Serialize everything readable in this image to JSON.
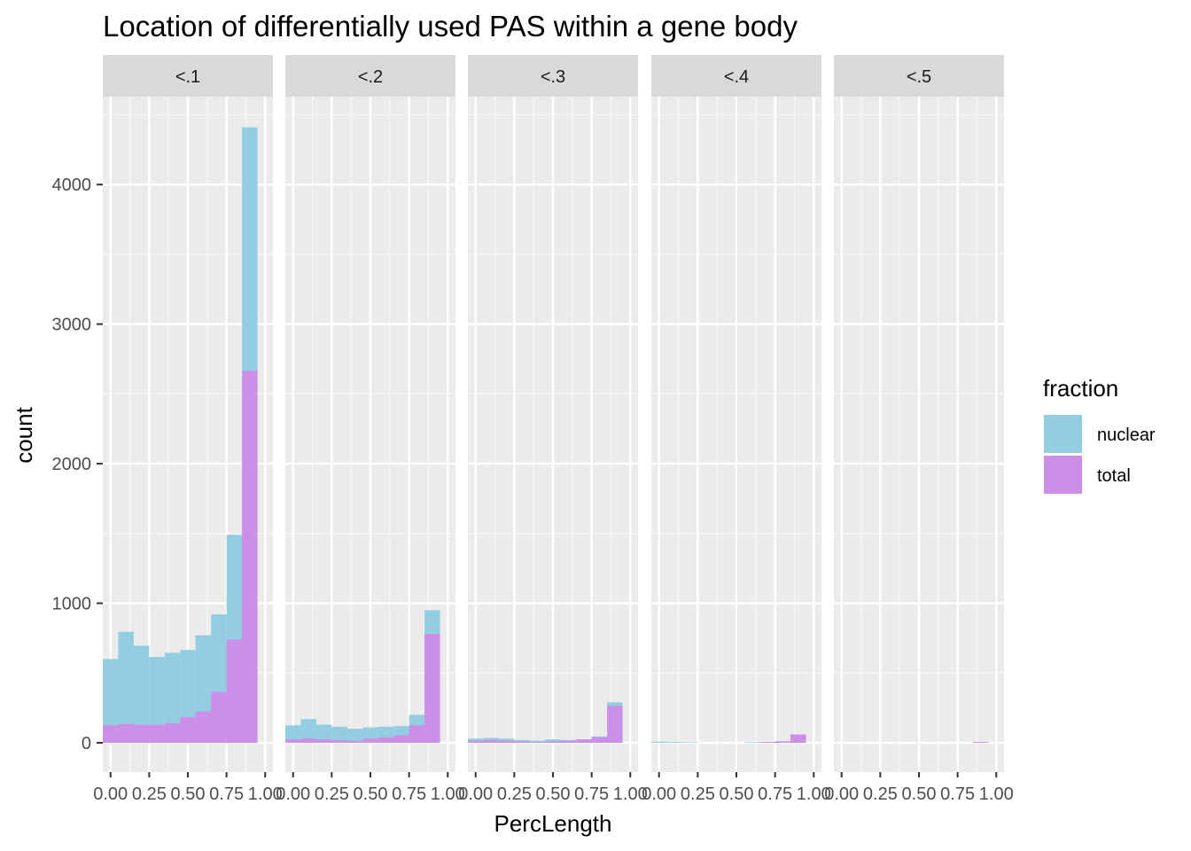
{
  "chart_data": {
    "type": "bar",
    "subtype": "faceted-histogram-overlay",
    "title": "Location of differentially used PAS within a gene body",
    "xlabel": "PercLength",
    "ylabel": "count",
    "ylim": [
      -210,
      4630
    ],
    "xlim": [
      -0.05,
      1.05
    ],
    "y_ticks": [
      0,
      1000,
      2000,
      3000,
      4000
    ],
    "x_ticks": [
      0,
      0.25,
      0.5,
      0.75,
      1.0
    ],
    "x_tick_labels": [
      "0.00",
      "0.25",
      "0.50",
      "0.75",
      "1.00"
    ],
    "grid": true,
    "bin_width": 0.1,
    "bin_centers": [
      0,
      0.1,
      0.2,
      0.3,
      0.4,
      0.5,
      0.6,
      0.7,
      0.8,
      0.9,
      1.0
    ],
    "legend": {
      "title": "fraction",
      "position": "right",
      "entries": [
        {
          "name": "nuclear",
          "color": "#92CDE2"
        },
        {
          "name": "total",
          "color": "#CC8FE8"
        }
      ]
    },
    "panels": [
      {
        "label": "<.1",
        "series": [
          {
            "name": "nuclear",
            "values": [
              600,
              795,
              695,
              615,
              645,
              665,
              770,
              920,
              1490,
              4410,
              0
            ]
          },
          {
            "name": "total",
            "values": [
              125,
              135,
              130,
              130,
              140,
              185,
              225,
              365,
              740,
              2665,
              0
            ]
          }
        ]
      },
      {
        "label": "<.2",
        "series": [
          {
            "name": "nuclear",
            "values": [
              125,
              170,
              130,
              115,
              100,
              110,
              115,
              120,
              200,
              950,
              0
            ]
          },
          {
            "name": "total",
            "values": [
              25,
              30,
              25,
              20,
              15,
              30,
              40,
              55,
              125,
              780,
              0
            ]
          }
        ]
      },
      {
        "label": "<.3",
        "series": [
          {
            "name": "nuclear",
            "values": [
              30,
              35,
              30,
              20,
              15,
              25,
              20,
              25,
              45,
              290,
              0
            ]
          },
          {
            "name": "total",
            "values": [
              15,
              20,
              15,
              10,
              5,
              10,
              15,
              25,
              40,
              265,
              0
            ]
          }
        ]
      },
      {
        "label": "<.4",
        "series": [
          {
            "name": "nuclear",
            "values": [
              8,
              6,
              4,
              0,
              0,
              0,
              4,
              6,
              10,
              15,
              0
            ]
          },
          {
            "name": "total",
            "values": [
              0,
              0,
              0,
              0,
              0,
              0,
              0,
              5,
              10,
              60,
              0
            ]
          }
        ]
      },
      {
        "label": "<.5",
        "series": [
          {
            "name": "nuclear",
            "values": [
              0,
              0,
              0,
              0,
              0,
              0,
              0,
              0,
              0,
              4,
              0
            ]
          },
          {
            "name": "total",
            "values": [
              0,
              0,
              0,
              0,
              0,
              0,
              0,
              0,
              0,
              6,
              0
            ]
          }
        ]
      }
    ]
  }
}
